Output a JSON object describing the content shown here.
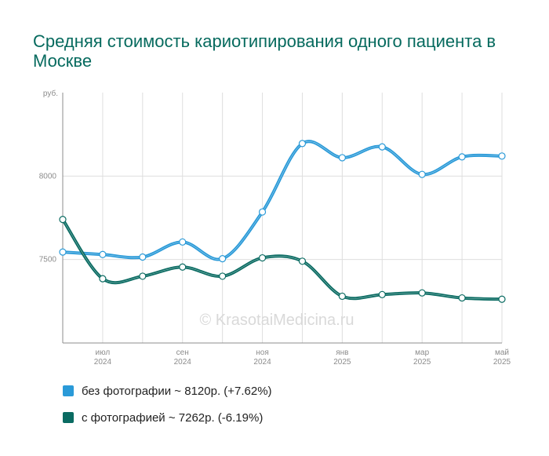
{
  "chart_data": {
    "type": "line",
    "title": "Средняя стоимость кариотипирования одного пациента в Москве",
    "yunit": "руб.",
    "yticks": [
      7500,
      8000
    ],
    "ylim": [
      7000,
      8500
    ],
    "x_ticks": [
      {
        "index": 1,
        "month": "июл",
        "year": "2024"
      },
      {
        "index": 3,
        "month": "сен",
        "year": "2024"
      },
      {
        "index": 5,
        "month": "ноя",
        "year": "2024"
      },
      {
        "index": 7,
        "month": "янв",
        "year": "2025"
      },
      {
        "index": 9,
        "month": "мар",
        "year": "2025"
      },
      {
        "index": 11,
        "month": "май",
        "year": "2025"
      }
    ],
    "x": [
      "2024-06",
      "2024-07",
      "2024-08",
      "2024-09",
      "2024-10",
      "2024-11",
      "2024-12",
      "2025-01",
      "2025-02",
      "2025-03",
      "2025-04",
      "2025-05"
    ],
    "series": [
      {
        "name": "без фотографии ~ 8120р. (+7.62%)",
        "color": "#2a9ad8",
        "values": [
          7545,
          7530,
          7515,
          7605,
          7505,
          7785,
          8195,
          8110,
          8175,
          8010,
          8115,
          8120
        ]
      },
      {
        "name": "с фотографией ~ 7262р. (-6.19%)",
        "color": "#0a6b62",
        "values": [
          7740,
          7385,
          7400,
          7455,
          7400,
          7510,
          7490,
          7280,
          7290,
          7300,
          7270,
          7262
        ]
      }
    ],
    "watermark": "© KrasotaiMedicina.ru",
    "grid": true,
    "legend": "bottom-left"
  }
}
